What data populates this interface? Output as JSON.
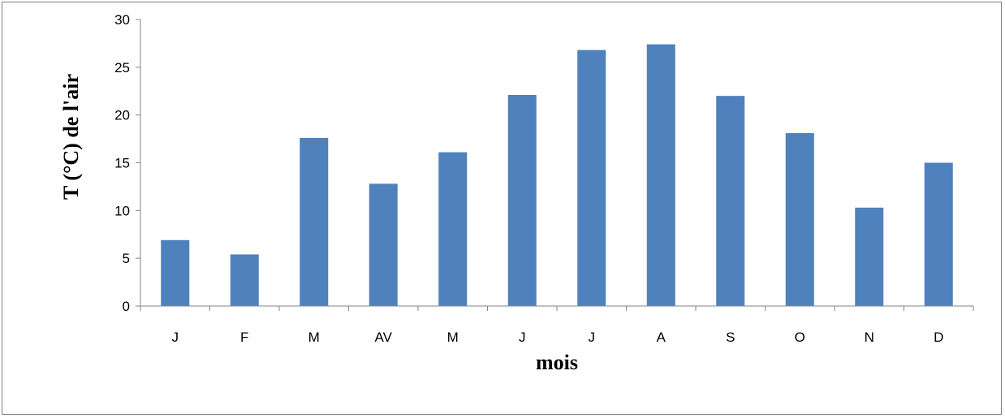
{
  "chart_data": {
    "type": "bar",
    "categories": [
      "J",
      "F",
      "M",
      "AV",
      "M",
      "J",
      "J",
      "A",
      "S",
      "O",
      "N",
      "D"
    ],
    "values": [
      6.9,
      5.4,
      17.6,
      12.8,
      16.1,
      22.1,
      26.8,
      27.4,
      22.0,
      18.1,
      10.3,
      15.0
    ],
    "title": "",
    "xlabel": "mois",
    "ylabel": "T (°C) de l'air",
    "ylim": [
      0,
      30
    ],
    "yticks": [
      0,
      5,
      10,
      15,
      20,
      25,
      30
    ],
    "grid": false,
    "legend": "none",
    "bar_color": "#4f81bd",
    "axis_color": "#868686"
  }
}
